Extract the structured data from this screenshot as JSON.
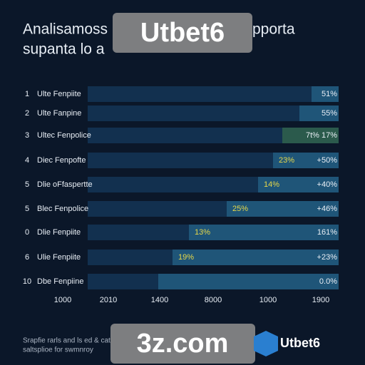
{
  "header": {
    "title_line1_left": "Analisamoss",
    "title_line1_right": "pporta",
    "title_line2": "supanta lo a"
  },
  "rows": [
    {
      "rank": "1",
      "label": "Ulte Fenpiite",
      "inner": "",
      "right": "51%"
    },
    {
      "rank": "2",
      "label": "Ulte Fanpine",
      "inner": "",
      "right": "55%"
    },
    {
      "rank": "3",
      "label": "Ultec Fenpolice",
      "inner": "",
      "right": "7t% 17%"
    },
    {
      "rank": "4",
      "label": "Diec Fenpofte",
      "inner": "23%",
      "right": "+50%"
    },
    {
      "rank": "5",
      "label": "Dlie oFfaspertte",
      "inner": "14%",
      "right": "+40%"
    },
    {
      "rank": "5",
      "label": "Blec Fenpolice",
      "inner": "25%",
      "right": "+46%"
    },
    {
      "rank": "0",
      "label": "Dlie Fenpiite",
      "inner": "13%",
      "right": "161%"
    },
    {
      "rank": "6",
      "label": "Ulie Fenpiite",
      "inner": "19%",
      "right": "+23%"
    },
    {
      "rank": "10",
      "label": "Dbe Fenpiine",
      "inner": "",
      "right": "0.0%"
    }
  ],
  "axis_labels": [
    "1000",
    "2010",
    "1400",
    "8000",
    "1000",
    "1900"
  ],
  "footnote": {
    "line1": "Srapfie rarls and ls ed & cat",
    "line2": "saltsplioe for swmnroy"
  },
  "watermarks": {
    "top": "Utbet6",
    "bottom": "3z.com",
    "logo": "Utbet6"
  }
}
